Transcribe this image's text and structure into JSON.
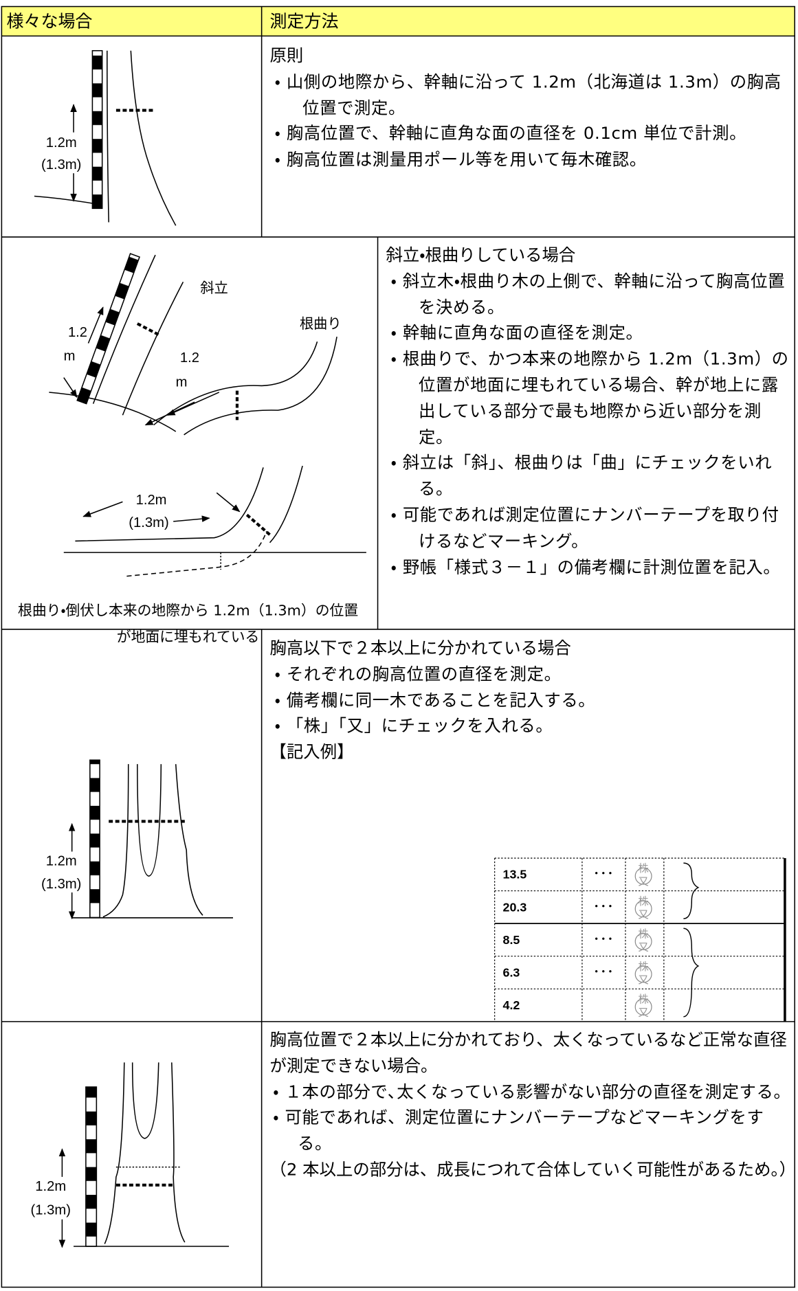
{
  "header": {
    "col1": "様々な場合",
    "col2": "測定方法"
  },
  "rows": [
    {
      "figure_labels": [
        "1.2m",
        "(1.3m)"
      ],
      "heading": "原則",
      "bullets": [
        "・ 山側の地際から、幹軸に沿って 1.2m（北海道は 1.3m）の胸高位置で測定。",
        "・ 胸高位置で、幹軸に直角な面の直径を 0.1cm 単位で計測。",
        "・ 胸高位置は測量用ポール等を用いて毎木確認。"
      ]
    },
    {
      "figure_labels": {
        "slant": "斜立",
        "bend": "根曲り",
        "slant_len": "1.2",
        "slant_unit": "m",
        "bend_len": "1.2",
        "bend_unit": "m",
        "buried_len": "1.2m",
        "buried_alt": "(1.3m)"
      },
      "caption": "根曲り・倒伏し本来の地際から 1.2m（1.3m）の位置が地面に埋もれている",
      "heading": "斜立・根曲りしている場合",
      "bullets": [
        "・ 斜立木・根曲り木の上側で、幹軸に沿って胸高位置を決める。",
        "・ 幹軸に直角な面の直径を測定。",
        "・ 根曲りで、かつ本来の地際から 1.2m（1.3m）の位置が地面に埋もれている場合、幹が地上に露出している部分で最も地際から近い部分を測定。",
        "・ 斜立は「斜」、根曲りは「曲」にチェックをいれる。",
        "・ 可能であれば測定位置にナンバーテープを取り付けるなどマーキング。",
        "・ 野帳「様式３－１」の備考欄に計測位置を記入。"
      ]
    },
    {
      "figure_labels": [
        "1.2m",
        "(1.3m)"
      ],
      "heading": "胸高以下で２本以上に分かれている場合",
      "bullets": [
        "・ それぞれの胸高位置の直径を測定。",
        "・ 備考欄に同一木であることを記入する。",
        "・ 「株」「又」にチェックを入れる。"
      ],
      "example_title": "【記入例】",
      "example_table": {
        "stamp": [
          "株",
          "又"
        ],
        "rows": [
          {
            "value": "13.5",
            "dots": "･･･"
          },
          {
            "value": "20.3",
            "dots": "･･･"
          },
          {
            "value": "8.5",
            "dots": "･･･"
          },
          {
            "value": "6.3",
            "dots": "･･･"
          },
          {
            "value": "4.2"
          }
        ]
      }
    },
    {
      "figure_labels": [
        "1.2m",
        "(1.3m)"
      ],
      "heading": "胸高位置で２本以上に分かれており、太くなっているなど正常な直径が測定できない場合。",
      "bullets": [
        "・ １本の部分で､太くなっている影響がない部分の直径を測定する。",
        "・ 可能であれば、測定位置にナンバーテープなどマーキングをする。"
      ],
      "note": "（2 本以上の部分は、成長につれて合体していく可能性があるため。）"
    }
  ]
}
